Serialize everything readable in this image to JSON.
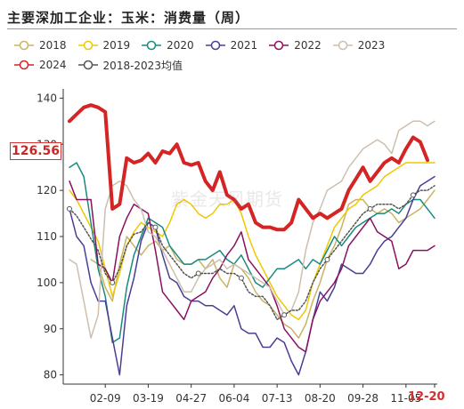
{
  "chart_title": "主要深加工企业：玉米：消费量（周）",
  "watermark": "紫金天风期货",
  "last_value_label": "126.56",
  "highlight_tick": "12-20",
  "chart_data": {
    "type": "line",
    "title": "主要深加工企业：玉米：消费量（周）",
    "xlabel": "",
    "ylabel": "",
    "x_ticks": [
      "02-09",
      "03-19",
      "04-27",
      "06-04",
      "07-13",
      "08-20",
      "09-28",
      "11-05",
      "12-20"
    ],
    "weeks": 52,
    "ylim": [
      78,
      142
    ],
    "yticks": [
      80,
      90,
      100,
      110,
      120,
      130,
      140
    ],
    "grid": false,
    "legend_position": "top",
    "series": [
      {
        "name": "2018",
        "color": "#c8b464",
        "width": 1.5,
        "marker": false,
        "values": [
          null,
          null,
          null,
          105,
          104,
          99,
          96,
          104,
          110,
          108,
          106,
          108,
          109,
          107,
          108,
          105,
          104,
          104,
          105,
          103,
          105,
          101,
          99,
          104,
          103,
          101,
          98,
          96,
          95,
          93,
          91,
          90,
          88,
          91,
          96,
          100,
          105,
          108,
          112,
          117,
          118,
          118,
          116,
          115,
          116,
          115,
          113,
          114,
          115,
          116,
          118,
          120
        ]
      },
      {
        "name": "2019",
        "color": "#f0c800",
        "width": 1.5,
        "marker": false,
        "values": [
          120,
          118,
          115,
          112,
          109,
          103,
          97,
          102,
          108,
          111,
          113,
          112,
          111,
          110,
          113,
          117,
          118,
          117,
          115,
          114,
          115,
          117,
          117,
          118,
          115,
          110,
          106,
          103,
          100,
          97,
          95,
          93,
          92,
          94,
          100,
          104,
          108,
          112,
          114,
          116,
          117,
          119,
          120,
          121,
          123,
          124,
          125,
          126,
          126,
          126,
          126,
          126
        ]
      },
      {
        "name": "2020",
        "color": "#1a8a80",
        "width": 1.5,
        "marker": false,
        "values": [
          125,
          126,
          123,
          113,
          103,
          97,
          87,
          88,
          99,
          106,
          110,
          114,
          113,
          112,
          108,
          106,
          104,
          104,
          105,
          105,
          106,
          107,
          105,
          104,
          106,
          103,
          100,
          99,
          101,
          103,
          103,
          104,
          105,
          103,
          105,
          104,
          107,
          110,
          108,
          110,
          112,
          113,
          114,
          115,
          115,
          116,
          115,
          117,
          118,
          118,
          116,
          114
        ]
      },
      {
        "name": "2021",
        "color": "#4a3d96",
        "width": 1.5,
        "marker": false,
        "values": [
          116,
          110,
          108,
          100,
          96,
          96,
          88,
          80,
          95,
          101,
          109,
          113,
          112,
          106,
          101,
          100,
          97,
          96,
          96,
          95,
          95,
          94,
          93,
          95,
          90,
          89,
          89,
          86,
          86,
          88,
          87,
          83,
          80,
          85,
          92,
          98,
          96,
          99,
          104,
          103,
          102,
          102,
          104,
          107,
          109,
          110,
          112,
          114,
          118,
          121,
          122,
          123
        ]
      },
      {
        "name": "2022",
        "color": "#8a1060",
        "width": 1.5,
        "marker": false,
        "values": [
          122,
          118,
          118,
          118,
          104,
          103,
          100,
          110,
          114,
          117,
          116,
          115,
          107,
          98,
          96,
          94,
          92,
          96,
          97,
          98,
          101,
          103,
          106,
          108,
          111,
          105,
          103,
          101,
          99,
          95,
          90,
          88,
          86,
          85,
          92,
          96,
          98,
          100,
          103,
          108,
          110,
          112,
          114,
          111,
          110,
          109,
          103,
          104,
          107,
          107,
          107,
          108
        ]
      },
      {
        "name": "2023",
        "color": "#cdbfae",
        "width": 1.5,
        "marker": false,
        "values": [
          105,
          104,
          96,
          88,
          93,
          116,
          121,
          122,
          121,
          118,
          116,
          111,
          110,
          107,
          104,
          101,
          98,
          98,
          101,
          103,
          104,
          105,
          103,
          104,
          103,
          102,
          101,
          100,
          99,
          96,
          93,
          94,
          98,
          107,
          113,
          116,
          120,
          121,
          122,
          125,
          127,
          129,
          130,
          131,
          130,
          128,
          133,
          134,
          135,
          135,
          134,
          135
        ]
      },
      {
        "name": "2024",
        "color": "#d42424",
        "width": 4,
        "marker": false,
        "values": [
          135,
          136.5,
          138,
          138.5,
          138,
          137,
          116,
          117,
          127,
          126,
          126.5,
          128,
          126,
          128.5,
          128,
          130,
          126,
          125.5,
          126,
          122,
          120,
          124,
          119,
          118,
          116,
          117,
          113,
          112,
          112,
          111.5,
          111.5,
          113,
          118,
          116,
          114,
          115,
          114,
          115,
          116,
          120,
          122.5,
          125,
          122,
          124,
          126,
          127,
          126,
          129,
          131.5,
          130.5,
          126.56,
          null
        ]
      },
      {
        "name": "2018-2023均值",
        "color": "#555555",
        "width": 1.5,
        "marker": true,
        "dash": "2 2",
        "values": [
          116,
          114.5,
          112,
          109.5,
          107,
          102,
          100,
          103,
          108,
          110.5,
          111,
          113,
          112,
          108,
          106,
          104,
          102,
          101,
          102,
          102,
          102,
          103,
          102,
          102,
          101,
          98,
          97,
          97,
          95,
          92,
          93,
          94,
          94,
          96,
          100,
          103,
          105,
          107,
          109,
          111,
          113,
          115,
          116,
          117,
          117,
          117,
          116,
          117,
          119,
          120,
          120,
          121
        ]
      }
    ]
  }
}
